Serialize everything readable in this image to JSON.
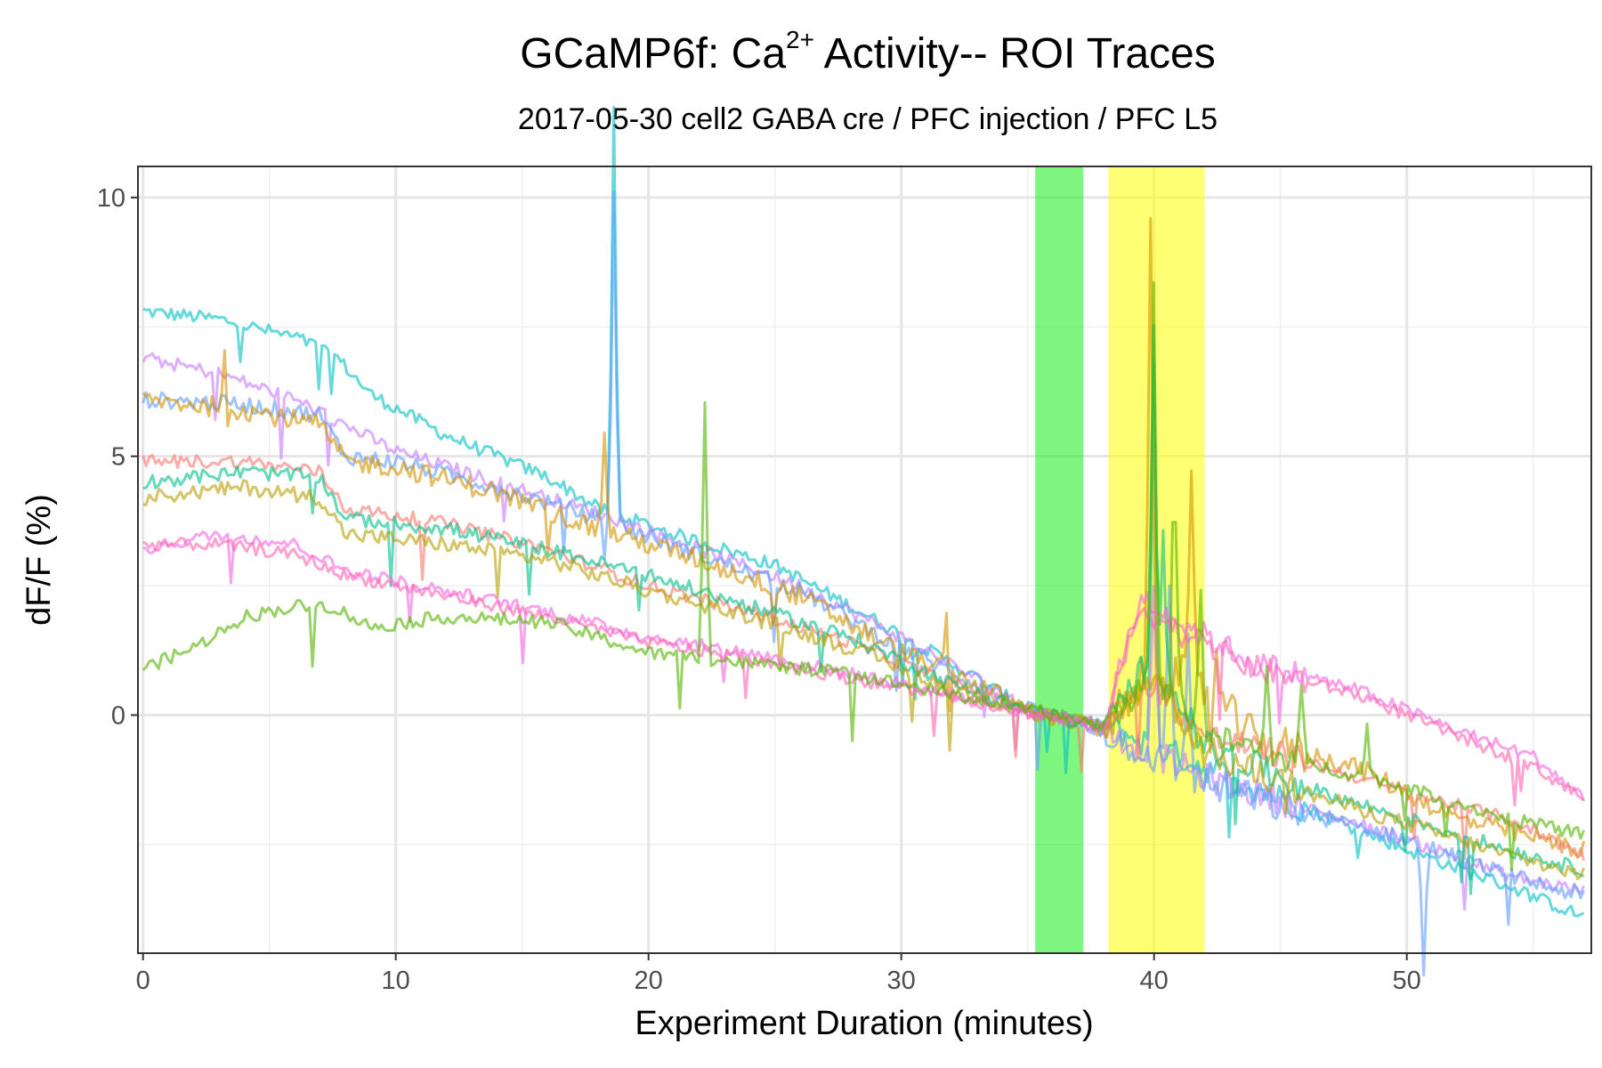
{
  "chart_data": {
    "type": "line",
    "title": {
      "main": "GCaMP6f: Ca",
      "superscript": "2+",
      "suffix": " Activity-- ROI Traces"
    },
    "subtitle": "2017-05-30 cell2 GABA cre / PFC injection / PFC L5",
    "xlabel": "Experiment Duration (minutes)",
    "ylabel": "dF/F (%)",
    "xlim": [
      -0.2,
      57.3
    ],
    "ylim": [
      -4.6,
      10.6
    ],
    "x_ticks": [
      0,
      10,
      20,
      30,
      40,
      50
    ],
    "x_tick_labels": [
      "0",
      "10",
      "20",
      "30",
      "40",
      "50"
    ],
    "y_ticks": [
      0,
      5,
      10
    ],
    "y_tick_labels": [
      "0",
      "5",
      "10"
    ],
    "grid": true,
    "legend": "none",
    "shaded_regions": [
      {
        "x_start": 35.3,
        "x_end": 37.2,
        "color": "#00ee00",
        "opacity": 0.5
      },
      {
        "x_start": 38.2,
        "x_end": 42.0,
        "color": "#ffff00",
        "opacity": 0.55
      }
    ],
    "n_points": 460,
    "series": [
      {
        "color": "#00BFC4",
        "start": 7.8,
        "anchors": [
          [
            0,
            7.8
          ],
          [
            3,
            7.65
          ],
          [
            6,
            7.3
          ],
          [
            7.5,
            7.0
          ],
          [
            9,
            6.2
          ],
          [
            12,
            5.4
          ],
          [
            16,
            4.6
          ],
          [
            18,
            4.0
          ],
          [
            21,
            3.5
          ],
          [
            25,
            2.9
          ],
          [
            28,
            2.1
          ],
          [
            32,
            1.0
          ],
          [
            35,
            0.1
          ],
          [
            38,
            -0.2
          ],
          [
            42,
            -1.0
          ],
          [
            46,
            -1.8
          ],
          [
            50,
            -2.6
          ],
          [
            54,
            -3.3
          ],
          [
            57,
            -3.9
          ]
        ],
        "noise": 0.13,
        "spikes": [
          [
            18.6,
            7.8
          ],
          [
            40.0,
            7.5
          ]
        ]
      },
      {
        "color": "#C77CFF",
        "start": 6.9,
        "anchors": [
          [
            0,
            6.9
          ],
          [
            3,
            6.6
          ],
          [
            6,
            6.1
          ],
          [
            8,
            5.6
          ],
          [
            10,
            5.1
          ],
          [
            14,
            4.5
          ],
          [
            18,
            3.9
          ],
          [
            22,
            3.2
          ],
          [
            26,
            2.5
          ],
          [
            30,
            1.5
          ],
          [
            33,
            0.7
          ],
          [
            35,
            0.15
          ],
          [
            38,
            -0.3
          ],
          [
            42,
            -1.2
          ],
          [
            46,
            -1.8
          ],
          [
            50,
            -2.4
          ],
          [
            54,
            -3.1
          ],
          [
            57,
            -3.4
          ]
        ],
        "noise": 0.13,
        "spikes": [
          [
            40.0,
            3.5
          ]
        ]
      },
      {
        "color": "#619CFF",
        "start": 6.1,
        "anchors": [
          [
            0,
            6.1
          ],
          [
            4,
            6.0
          ],
          [
            7,
            5.8
          ],
          [
            8,
            5.0
          ],
          [
            10,
            4.9
          ],
          [
            14,
            4.4
          ],
          [
            18,
            3.8
          ],
          [
            22,
            3.1
          ],
          [
            26,
            2.4
          ],
          [
            30,
            1.3
          ],
          [
            33,
            0.6
          ],
          [
            35,
            0.1
          ],
          [
            38,
            -0.3
          ],
          [
            42,
            -1.3
          ],
          [
            46,
            -1.9
          ],
          [
            50,
            -2.4
          ],
          [
            54,
            -3.1
          ],
          [
            57,
            -3.5
          ]
        ],
        "noise": 0.16,
        "spikes": [
          [
            18.6,
            6.4
          ],
          [
            40.6,
            3.5
          ],
          [
            41.3,
            2.8
          ],
          [
            50.7,
            -2.5
          ]
        ]
      },
      {
        "color": "#D39200",
        "start": 6.1,
        "anchors": [
          [
            0,
            6.1
          ],
          [
            4,
            5.9
          ],
          [
            7,
            5.6
          ],
          [
            8,
            4.9
          ],
          [
            10,
            4.8
          ],
          [
            14,
            4.3
          ],
          [
            18,
            3.6
          ],
          [
            22,
            3.0
          ],
          [
            26,
            2.3
          ],
          [
            30,
            1.2
          ],
          [
            33,
            0.6
          ],
          [
            35,
            0.1
          ],
          [
            38,
            -0.3
          ],
          [
            40,
            1.0
          ],
          [
            42,
            0.5
          ],
          [
            44,
            -0.5
          ],
          [
            48,
            -1.0
          ],
          [
            52,
            -2.0
          ],
          [
            57,
            -2.6
          ]
        ],
        "noise": 0.2,
        "spikes": [
          [
            3.2,
            1.2
          ],
          [
            18.3,
            1.8
          ],
          [
            31.8,
            1.0
          ],
          [
            39.9,
            8.7
          ],
          [
            41.5,
            3.8
          ],
          [
            42.5,
            0.9
          ]
        ]
      },
      {
        "color": "#F8766D",
        "start": 4.9,
        "anchors": [
          [
            0,
            4.9
          ],
          [
            4,
            4.9
          ],
          [
            7,
            4.7
          ],
          [
            8,
            4.0
          ],
          [
            12,
            3.7
          ],
          [
            16,
            3.2
          ],
          [
            20,
            2.5
          ],
          [
            24,
            2.0
          ],
          [
            28,
            1.4
          ],
          [
            32,
            0.6
          ],
          [
            35,
            0.1
          ],
          [
            38,
            -0.25
          ],
          [
            40,
            0.6
          ],
          [
            42,
            -0.4
          ],
          [
            46,
            -0.9
          ],
          [
            50,
            -1.5
          ],
          [
            54,
            -2.0
          ],
          [
            57,
            -2.7
          ]
        ],
        "noise": 0.13,
        "spikes": []
      },
      {
        "color": "#00C08B",
        "start": 4.5,
        "anchors": [
          [
            0,
            4.5
          ],
          [
            4,
            4.7
          ],
          [
            7,
            4.6
          ],
          [
            8,
            3.8
          ],
          [
            12,
            3.6
          ],
          [
            16,
            3.2
          ],
          [
            20,
            2.7
          ],
          [
            24,
            2.1
          ],
          [
            28,
            1.5
          ],
          [
            32,
            0.6
          ],
          [
            35,
            0.1
          ],
          [
            38,
            -0.25
          ],
          [
            40,
            1.2
          ],
          [
            42,
            -0.6
          ],
          [
            46,
            -1.4
          ],
          [
            50,
            -2.0
          ],
          [
            54,
            -2.6
          ],
          [
            57,
            -3.0
          ]
        ],
        "noise": 0.14,
        "spikes": [
          [
            40.0,
            6.5
          ],
          [
            40.4,
            3.0
          ]
        ]
      },
      {
        "color": "#B79F00",
        "start": 4.2,
        "anchors": [
          [
            0,
            4.2
          ],
          [
            4,
            4.4
          ],
          [
            7,
            4.2
          ],
          [
            8,
            3.5
          ],
          [
            12,
            3.3
          ],
          [
            16,
            3.0
          ],
          [
            20,
            2.4
          ],
          [
            24,
            1.9
          ],
          [
            28,
            1.3
          ],
          [
            32,
            0.5
          ],
          [
            35,
            0.1
          ],
          [
            38,
            -0.25
          ],
          [
            40,
            0.8
          ],
          [
            42,
            -0.7
          ],
          [
            46,
            -1.5
          ],
          [
            50,
            -2.1
          ],
          [
            54,
            -2.7
          ],
          [
            57,
            -3.1
          ]
        ],
        "noise": 0.15,
        "spikes": []
      },
      {
        "color": "#F564E3",
        "start": 3.2,
        "anchors": [
          [
            0,
            3.2
          ],
          [
            3,
            3.5
          ],
          [
            6,
            3.3
          ],
          [
            8,
            2.8
          ],
          [
            12,
            2.4
          ],
          [
            16,
            2.0
          ],
          [
            20,
            1.5
          ],
          [
            24,
            1.2
          ],
          [
            28,
            0.8
          ],
          [
            32,
            0.4
          ],
          [
            35,
            0.05
          ],
          [
            38,
            -0.2
          ],
          [
            39.5,
            2.3
          ],
          [
            41,
            1.8
          ],
          [
            44,
            1.0
          ],
          [
            48,
            0.5
          ],
          [
            52,
            -0.3
          ],
          [
            55,
            -0.8
          ],
          [
            57,
            -1.6
          ]
        ],
        "noise": 0.12,
        "spikes": []
      },
      {
        "color": "#FF64B0",
        "start": 3.3,
        "anchors": [
          [
            0,
            3.3
          ],
          [
            3,
            3.3
          ],
          [
            6,
            3.1
          ],
          [
            8,
            2.7
          ],
          [
            12,
            2.3
          ],
          [
            16,
            1.9
          ],
          [
            20,
            1.4
          ],
          [
            24,
            1.1
          ],
          [
            28,
            0.7
          ],
          [
            32,
            0.35
          ],
          [
            35,
            0.05
          ],
          [
            38,
            -0.2
          ],
          [
            39.5,
            2.1
          ],
          [
            41,
            1.6
          ],
          [
            44,
            0.9
          ],
          [
            48,
            0.4
          ],
          [
            52,
            -0.4
          ],
          [
            55,
            -1.0
          ],
          [
            57,
            -1.6
          ]
        ],
        "noise": 0.12,
        "spikes": []
      },
      {
        "color": "#53B400",
        "start": 0.9,
        "anchors": [
          [
            0,
            0.9
          ],
          [
            2,
            1.3
          ],
          [
            4,
            1.9
          ],
          [
            6,
            2.1
          ],
          [
            7.5,
            2.1
          ],
          [
            9,
            1.7
          ],
          [
            12,
            1.9
          ],
          [
            16,
            1.8
          ],
          [
            18,
            1.5
          ],
          [
            20,
            1.2
          ],
          [
            24,
            1.0
          ],
          [
            28,
            0.8
          ],
          [
            32,
            0.4
          ],
          [
            35,
            0.1
          ],
          [
            38,
            -0.2
          ],
          [
            40,
            0.8
          ],
          [
            42,
            -0.4
          ],
          [
            45,
            -0.8
          ],
          [
            50,
            -1.4
          ],
          [
            54,
            -2.0
          ],
          [
            57,
            -2.3
          ]
        ],
        "noise": 0.13,
        "spikes": [
          [
            22.2,
            5.0
          ],
          [
            40.0,
            7.3
          ],
          [
            40.8,
            3.5
          ],
          [
            41.8,
            3.0
          ],
          [
            44.5,
            1.5
          ],
          [
            45.8,
            1.2
          ],
          [
            48.4,
            1.0
          ]
        ]
      }
    ]
  }
}
